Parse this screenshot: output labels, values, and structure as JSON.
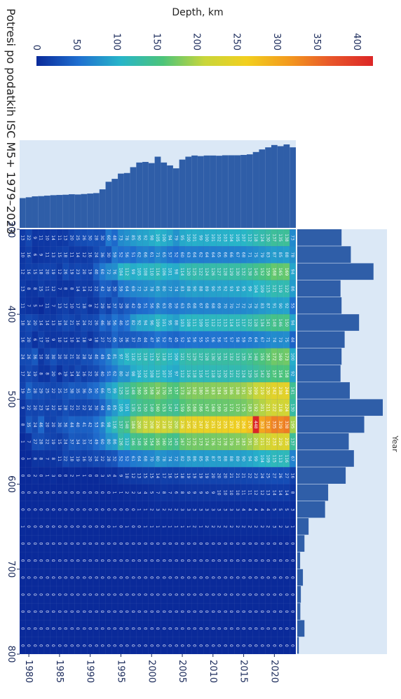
{
  "chart_data": {
    "type": "heatmap",
    "title": "Potresi po podatkih ISC M5+ 1979–2023",
    "xlabel": "Year",
    "ylabel": "Depth, km",
    "x_ticks": [
      "1980",
      "1985",
      "1990",
      "1995",
      "2000",
      "2005",
      "2010",
      "2015",
      "2020"
    ],
    "y_ticks": [
      "300",
      "400",
      "500",
      "600",
      "700",
      "800"
    ],
    "colorbar_ticks": [
      "0",
      "50",
      "100",
      "150",
      "200",
      "250",
      "300",
      "350",
      "400"
    ],
    "colorbar_range": [
      0,
      420
    ],
    "colorscale": [
      "#0a2a9a",
      "#1f6fd0",
      "#27b5c9",
      "#4cc47a",
      "#c9d63a",
      "#f2cf1e",
      "#f39a1e",
      "#e8562a",
      "#dc2626"
    ],
    "years": [
      1979,
      1980,
      1981,
      1982,
      1983,
      1984,
      1985,
      1986,
      1987,
      1988,
      1989,
      1990,
      1991,
      1992,
      1993,
      1994,
      1995,
      1996,
      1997,
      1998,
      1999,
      2000,
      2001,
      2002,
      2003,
      2004,
      2005,
      2006,
      2007,
      2008,
      2009,
      2010,
      2011,
      2012,
      2013,
      2014,
      2015,
      2016,
      2017,
      2018,
      2019,
      2020,
      2021,
      2022,
      2023
    ],
    "depth_bins": [
      300,
      320,
      340,
      360,
      380,
      400,
      420,
      440,
      460,
      480,
      500,
      520,
      540,
      560,
      580,
      600,
      620,
      640,
      660,
      680,
      700,
      720,
      740,
      760,
      780
    ],
    "year_totals": [
      255,
      262,
      270,
      272,
      276,
      280,
      282,
      284,
      288,
      286,
      290,
      294,
      298,
      330,
      395,
      420,
      465,
      470,
      520,
      560,
      565,
      555,
      610,
      560,
      535,
      510,
      585,
      610,
      620,
      615,
      620,
      620,
      618,
      622,
      622,
      622,
      625,
      630,
      650,
      672,
      690,
      710,
      700,
      715,
      690
    ],
    "depth_totals": [
      430,
      520,
      740,
      420,
      430,
      600,
      460,
      430,
      420,
      510,
      830,
      650,
      500,
      550,
      470,
      300,
      270,
      110,
      70,
      28,
      55,
      35,
      30,
      70,
      15
    ],
    "counts": [
      [
        13,
        10,
        12,
        13,
        11,
        18,
        16,
        24,
        17,
        19,
        9,
        8,
        1,
        0,
        0,
        0,
        0,
        1,
        0,
        0,
        0,
        0,
        0,
        0,
        0
      ],
      [
        22,
        16,
        16,
        8,
        7,
        24,
        20,
        26,
        24,
        41,
        22,
        35,
        7,
        1,
        0,
        0,
        0,
        0,
        0,
        0,
        0,
        0,
        0,
        0,
        0
      ],
      [
        9,
        6,
        15,
        8,
        5,
        20,
        6,
        36,
        19,
        28,
        20,
        24,
        27,
        8,
        2,
        0,
        0,
        0,
        0,
        0,
        0,
        0,
        0,
        0,
        0
      ],
      [
        11,
        9,
        18,
        15,
        1,
        14,
        17,
        10,
        8,
        29,
        23,
        46,
        28,
        8,
        0,
        0,
        0,
        0,
        0,
        0,
        0,
        0,
        0,
        0,
        0
      ],
      [
        10,
        11,
        20,
        11,
        11,
        14,
        10,
        20,
        8,
        25,
        19,
        20,
        22,
        7,
        1,
        0,
        0,
        0,
        0,
        0,
        0,
        0,
        0,
        0,
        0
      ],
      [
        14,
        13,
        19,
        12,
        7,
        13,
        9,
        30,
        20,
        22,
        22,
        20,
        19,
        8,
        3,
        0,
        0,
        0,
        0,
        0,
        0,
        0,
        0,
        0,
        0
      ],
      [
        11,
        15,
        12,
        7,
        13,
        18,
        10,
        20,
        6,
        25,
        18,
        30,
        15,
        11,
        0,
        0,
        0,
        0,
        0,
        0,
        0,
        0,
        0,
        0,
        0
      ],
      [
        13,
        18,
        26,
        8,
        17,
        24,
        13,
        20,
        19,
        31,
        28,
        36,
        24,
        22,
        0,
        0,
        0,
        0,
        0,
        0,
        0,
        0,
        0,
        0,
        0
      ],
      [
        20,
        11,
        19,
        8,
        10,
        21,
        10,
        21,
        14,
        38,
        22,
        44,
        37,
        18,
        2,
        0,
        0,
        0,
        0,
        0,
        0,
        0,
        0,
        0,
        0
      ],
      [
        25,
        14,
        23,
        14,
        17,
        16,
        14,
        20,
        24,
        35,
        21,
        40,
        34,
        19,
        1,
        0,
        0,
        0,
        0,
        0,
        0,
        0,
        0,
        0,
        0
      ],
      [
        26,
        12,
        20,
        14,
        18,
        24,
        18,
        28,
        16,
        36,
        22,
        41,
        33,
        16,
        1,
        0,
        0,
        0,
        0,
        0,
        0,
        0,
        0,
        0,
        0
      ],
      [
        30,
        16,
        19,
        12,
        8,
        22,
        9,
        29,
        22,
        45,
        24,
        42,
        37,
        20,
        0,
        0,
        0,
        0,
        0,
        0,
        0,
        0,
        0,
        0,
        0
      ],
      [
        28,
        24,
        40,
        22,
        12,
        26,
        18,
        40,
        26,
        50,
        30,
        53,
        49,
        24,
        0,
        0,
        0,
        0,
        0,
        0,
        0,
        0,
        0,
        0,
        0
      ],
      [
        30,
        36,
        60,
        42,
        29,
        46,
        27,
        49,
        40,
        66,
        44,
        66,
        60,
        22,
        3,
        0,
        0,
        0,
        0,
        0,
        0,
        0,
        0,
        0,
        0
      ],
      [
        60,
        30,
        72,
        39,
        18,
        38,
        27,
        64,
        51,
        87,
        68,
        98,
        80,
        28,
        5,
        0,
        0,
        0,
        0,
        0,
        0,
        0,
        0,
        0,
        0
      ],
      [
        48,
        59,
        76,
        30,
        37,
        56,
        45,
        81,
        62,
        99,
        85,
        116,
        86,
        32,
        4,
        1,
        0,
        1,
        0,
        0,
        0,
        0,
        0,
        0,
        0
      ],
      [
        73,
        52,
        104,
        59,
        29,
        46,
        35,
        97,
        80,
        125,
        105,
        137,
        126,
        52,
        9,
        1,
        0,
        0,
        0,
        0,
        0,
        0,
        0,
        0,
        0
      ],
      [
        78,
        56,
        112,
        64,
        38,
        53,
        36,
        107,
        79,
        133,
        101,
        148,
        112,
        52,
        10,
        2,
        0,
        1,
        0,
        0,
        0,
        0,
        0,
        0,
        0
      ],
      [
        85,
        51,
        99,
        69,
        42,
        82,
        37,
        110,
        98,
        148,
        135,
        184,
        146,
        61,
        12,
        2,
        0,
        0,
        0,
        0,
        0,
        0,
        0,
        0,
        0
      ],
      [
        90,
        62,
        105,
        72,
        49,
        92,
        41,
        115,
        104,
        160,
        143,
        200,
        148,
        64,
        13,
        3,
        1,
        0,
        0,
        0,
        0,
        0,
        0,
        0,
        0
      ],
      [
        92,
        66,
        108,
        75,
        51,
        94,
        44,
        118,
        110,
        165,
        150,
        210,
        156,
        68,
        15,
        4,
        1,
        1,
        0,
        0,
        0,
        0,
        0,
        0,
        0
      ],
      [
        98,
        61,
        110,
        78,
        56,
        96,
        47,
        113,
        108,
        168,
        149,
        208,
        154,
        70,
        15,
        5,
        2,
        1,
        0,
        0,
        0,
        0,
        0,
        0,
        0
      ],
      [
        105,
        71,
        116,
        85,
        66,
        109,
        56,
        124,
        113,
        176,
        160,
        226,
        165,
        80,
        14,
        7,
        3,
        1,
        0,
        0,
        0,
        0,
        0,
        0,
        0
      ],
      [
        100,
        65,
        106,
        80,
        63,
        101,
        52,
        118,
        107,
        170,
        153,
        218,
        160,
        78,
        17,
        8,
        2,
        1,
        0,
        0,
        0,
        0,
        0,
        0,
        0
      ],
      [
        94,
        57,
        101,
        77,
        60,
        95,
        47,
        111,
        101,
        161,
        147,
        210,
        152,
        74,
        16,
        7,
        2,
        1,
        0,
        0,
        0,
        0,
        0,
        0,
        0
      ],
      [
        79,
        52,
        98,
        74,
        59,
        88,
        45,
        106,
        97,
        157,
        141,
        200,
        145,
        72,
        15,
        6,
        2,
        1,
        0,
        0,
        0,
        0,
        0,
        0,
        0
      ],
      [
        95,
        60,
        114,
        83,
        63,
        103,
        52,
        121,
        112,
        173,
        159,
        236,
        167,
        82,
        18,
        8,
        3,
        1,
        0,
        0,
        0,
        0,
        0,
        0,
        0
      ],
      [
        100,
        63,
        120,
        88,
        65,
        108,
        54,
        127,
        116,
        178,
        165,
        245,
        172,
        85,
        19,
        9,
        3,
        1,
        0,
        0,
        0,
        0,
        0,
        0,
        0
      ],
      [
        101,
        64,
        125,
        90,
        68,
        111,
        56,
        129,
        118,
        182,
        168,
        250,
        175,
        86,
        19,
        9,
        3,
        2,
        0,
        0,
        0,
        0,
        0,
        0,
        0
      ],
      [
        99,
        62,
        122,
        88,
        67,
        109,
        55,
        127,
        116,
        180,
        166,
        247,
        173,
        85,
        19,
        9,
        3,
        1,
        0,
        0,
        0,
        0,
        0,
        0,
        0
      ],
      [
        100,
        64,
        124,
        89,
        68,
        110,
        55,
        128,
        117,
        181,
        167,
        249,
        174,
        86,
        19,
        9,
        3,
        2,
        0,
        0,
        0,
        0,
        0,
        0,
        0
      ],
      [
        101,
        64,
        126,
        90,
        68,
        112,
        56,
        130,
        118,
        183,
        168,
        251,
        176,
        87,
        20,
        9,
        3,
        2,
        0,
        0,
        0,
        0,
        0,
        0,
        0
      ],
      [
        102,
        65,
        127,
        91,
        69,
        112,
        56,
        130,
        119,
        184,
        169,
        253,
        177,
        87,
        20,
        10,
        3,
        2,
        0,
        0,
        0,
        0,
        0,
        0,
        0
      ],
      [
        103,
        66,
        128,
        92,
        70,
        113,
        57,
        131,
        120,
        185,
        170,
        255,
        178,
        88,
        20,
        10,
        3,
        2,
        0,
        0,
        0,
        0,
        0,
        0,
        0
      ],
      [
        104,
        66,
        129,
        93,
        70,
        114,
        57,
        132,
        121,
        186,
        171,
        257,
        179,
        88,
        21,
        10,
        3,
        2,
        0,
        0,
        0,
        0,
        0,
        0,
        0
      ],
      [
        105,
        67,
        130,
        94,
        71,
        115,
        58,
        133,
        122,
        188,
        173,
        260,
        181,
        89,
        21,
        10,
        3,
        2,
        0,
        0,
        0,
        0,
        0,
        0,
        0
      ],
      [
        107,
        68,
        132,
        95,
        72,
        117,
        59,
        135,
        124,
        191,
        175,
        264,
        183,
        90,
        21,
        11,
        4,
        2,
        0,
        0,
        0,
        0,
        0,
        0,
        0
      ],
      [
        112,
        71,
        138,
        99,
        75,
        122,
        61,
        141,
        129,
        199,
        183,
        276,
        191,
        94,
        22,
        11,
        4,
        2,
        0,
        0,
        0,
        0,
        0,
        0,
        0
      ],
      [
        118,
        75,
        145,
        104,
        79,
        128,
        64,
        148,
        135,
        209,
        192,
        448,
        201,
        99,
        23,
        12,
        4,
        2,
        0,
        0,
        0,
        0,
        0,
        0,
        0
      ],
      [
        124,
        79,
        152,
        109,
        83,
        134,
        67,
        155,
        142,
        219,
        201,
        303,
        211,
        104,
        24,
        12,
        4,
        2,
        0,
        0,
        0,
        0,
        0,
        0,
        0
      ],
      [
        130,
        83,
        159,
        115,
        87,
        141,
        71,
        163,
        149,
        230,
        211,
        318,
        221,
        109,
        25,
        13,
        4,
        2,
        0,
        0,
        0,
        0,
        0,
        0,
        0
      ],
      [
        137,
        87,
        168,
        121,
        91,
        148,
        74,
        172,
        157,
        242,
        222,
        335,
        233,
        115,
        27,
        14,
        5,
        3,
        0,
        0,
        0,
        0,
        0,
        0,
        0
      ],
      [
        135,
        85,
        165,
        119,
        90,
        146,
        73,
        169,
        154,
        238,
        218,
        329,
        229,
        113,
        26,
        14,
        5,
        2,
        0,
        0,
        0,
        0,
        0,
        0,
        0
      ],
      [
        138,
        88,
        169,
        122,
        92,
        150,
        75,
        173,
        158,
        244,
        224,
        338,
        235,
        116,
        27,
        14,
        5,
        3,
        0,
        0,
        0,
        0,
        0,
        0,
        0
      ],
      [
        73,
        78,
        94,
        86,
        55,
        94,
        44,
        100,
        92,
        141,
        130,
        195,
        137,
        67,
        16,
        8,
        3,
        1,
        0,
        0,
        0,
        0,
        0,
        0,
        0
      ]
    ]
  }
}
